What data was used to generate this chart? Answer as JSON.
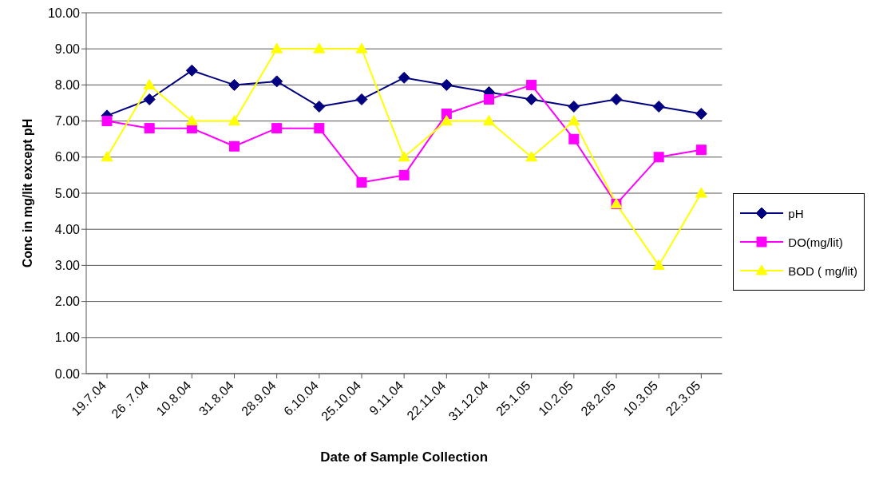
{
  "chart_data": {
    "type": "line",
    "xlabel": "Date of Sample Collection",
    "ylabel": "Conc in mg/lit except pH",
    "categories": [
      "19.7.04",
      "26 .7.04",
      "10.8.04",
      "31.8.04",
      "28.9.04",
      "6.10.04",
      "25.10.04",
      "9.11.04",
      "22.11.04",
      "31.12.04",
      "25.1.05",
      "10.2.05",
      "28.2.05",
      "10.3.05",
      "22.3.05"
    ],
    "series": [
      {
        "name": "pH",
        "color": "#000080",
        "marker": "diamond",
        "values": [
          7.15,
          7.6,
          8.4,
          8.0,
          8.1,
          7.4,
          7.6,
          8.2,
          8.0,
          7.8,
          7.6,
          7.4,
          7.6,
          7.4,
          7.2
        ]
      },
      {
        "name": "DO(mg/lit)",
        "color": "#ff00ff",
        "marker": "square",
        "values": [
          7.0,
          6.8,
          6.8,
          6.3,
          6.8,
          6.8,
          5.3,
          5.5,
          7.2,
          7.6,
          8.0,
          6.5,
          4.7,
          6.0,
          6.2
        ]
      },
      {
        "name": "BOD ( mg/lit)",
        "color": "#ffff00",
        "marker": "triangle",
        "values": [
          6,
          8,
          7,
          7,
          9,
          9,
          9,
          6,
          7,
          7,
          6,
          7,
          4.7,
          3,
          5
        ]
      }
    ],
    "ylim": [
      0,
      10
    ],
    "yticks": [
      {
        "value": 0,
        "label": "0.00"
      },
      {
        "value": 1,
        "label": "1.00"
      },
      {
        "value": 2,
        "label": "2.00"
      },
      {
        "value": 3,
        "label": "3.00"
      },
      {
        "value": 4,
        "label": "4.00"
      },
      {
        "value": 5,
        "label": "5.00"
      },
      {
        "value": 6,
        "label": "6.00"
      },
      {
        "value": 7,
        "label": "7.00"
      },
      {
        "value": 8,
        "label": "8.00"
      },
      {
        "value": 9,
        "label": "9.00"
      },
      {
        "value": 10,
        "label": "10.00"
      }
    ],
    "grid": "y",
    "legend": "right",
    "line_style": "solid"
  }
}
